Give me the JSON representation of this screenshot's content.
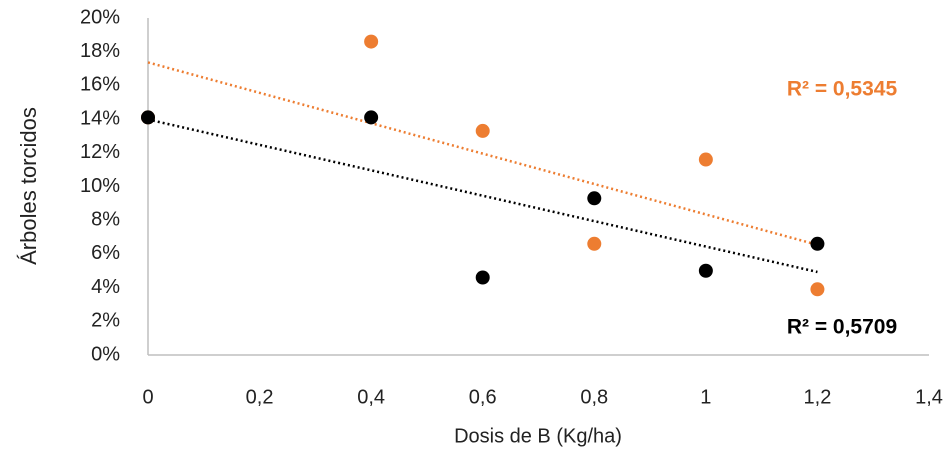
{
  "chart_data": {
    "type": "scatter",
    "x_label": "Dosis de B (Kg/ha)",
    "y_label": "Árboles torcidos",
    "xlim": [
      0,
      1.4
    ],
    "xticks": [
      0,
      {
        "value": 0.2,
        "label": "0,2"
      },
      {
        "value": 0.4,
        "label": "0,4"
      },
      {
        "value": 0.6,
        "label": "0,6"
      },
      {
        "value": 0.8,
        "label": "0,8"
      },
      1,
      {
        "value": 1.2,
        "label": "1,2"
      },
      {
        "value": 1.4,
        "label": "1,4"
      }
    ],
    "ylim": [
      0,
      20
    ],
    "yticks": [
      {
        "value": 0,
        "label": "0%"
      },
      {
        "value": 2,
        "label": "2%"
      },
      {
        "value": 4,
        "label": "4%"
      },
      {
        "value": 6,
        "label": "6%"
      },
      {
        "value": 8,
        "label": "8%"
      },
      {
        "value": 10,
        "label": "10%"
      },
      {
        "value": 12,
        "label": "12%"
      },
      {
        "value": 14,
        "label": "14%"
      },
      {
        "value": 16,
        "label": "16%"
      },
      {
        "value": 18,
        "label": "18%"
      },
      {
        "value": 20,
        "label": "20%"
      }
    ],
    "grid": false,
    "trendline": "linear",
    "series": [
      {
        "color": "#ed7d31",
        "x": [
          0,
          0.4,
          0.6,
          0.8,
          1,
          1.2
        ],
        "values": [
          14.1,
          18.6,
          13.3,
          6.6,
          11.6,
          3.9
        ],
        "r2_label": "R² = 0,5345"
      },
      {
        "color": "#000000",
        "x": [
          0,
          0.4,
          0.6,
          0.8,
          1,
          1.2
        ],
        "values": [
          14.1,
          14.1,
          4.6,
          9.3,
          5.0,
          6.6
        ],
        "r2_label": "R² = 0,5709"
      }
    ]
  }
}
